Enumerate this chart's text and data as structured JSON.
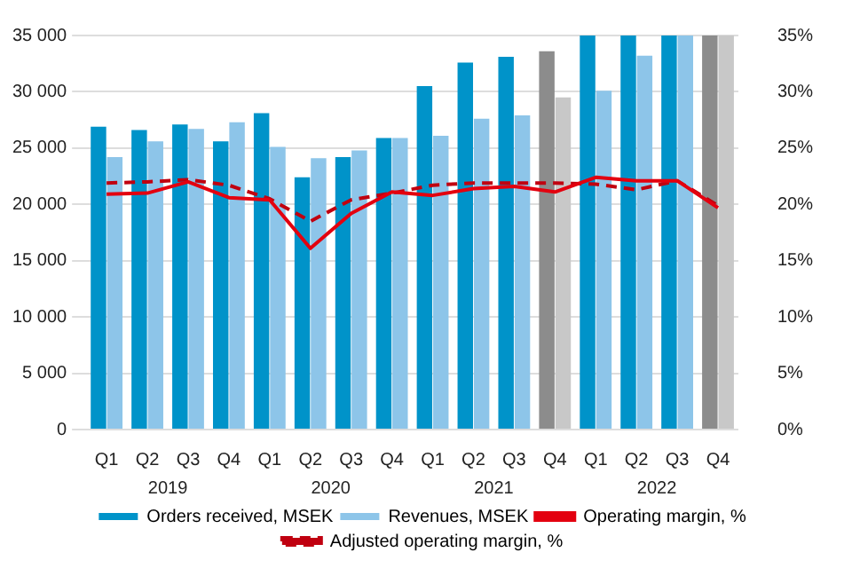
{
  "chart_data": {
    "type": "bar",
    "categories": [
      "Q1",
      "Q2",
      "Q3",
      "Q4",
      "Q1",
      "Q2",
      "Q3",
      "Q4",
      "Q1",
      "Q2",
      "Q3",
      "Q4",
      "Q1",
      "Q2",
      "Q3",
      "Q4"
    ],
    "annotations": [
      "2019",
      "2020",
      "2021",
      "2022"
    ],
    "series": [
      {
        "name": "Orders received, MSEK",
        "color": "#0093c9",
        "colors": [
          "#0093c9",
          "#0093c9",
          "#0093c9",
          "#0093c9",
          "#0093c9",
          "#0093c9",
          "#0093c9",
          "#0093c9",
          "#0093c9",
          "#0093c9",
          "#0093c9",
          "#8c8c8c",
          "#0093c9",
          "#0093c9",
          "#0093c9",
          "#8c8c8c"
        ],
        "values": [
          26900,
          26600,
          27100,
          25600,
          28100,
          22400,
          24200,
          25900,
          30500,
          32600,
          33100,
          33600,
          35000,
          35000,
          35000,
          35000
        ]
      },
      {
        "name": "Revenues, MSEK",
        "color": "#8dc5e9",
        "colors": [
          "#8dc5e9",
          "#8dc5e9",
          "#8dc5e9",
          "#8dc5e9",
          "#8dc5e9",
          "#8dc5e9",
          "#8dc5e9",
          "#8dc5e9",
          "#8dc5e9",
          "#8dc5e9",
          "#8dc5e9",
          "#c8c8c8",
          "#8dc5e9",
          "#8dc5e9",
          "#8dc5e9",
          "#c8c8c8"
        ],
        "values": [
          24200,
          25600,
          26700,
          27300,
          25100,
          24100,
          24800,
          25900,
          26100,
          27600,
          27900,
          29500,
          30100,
          33200,
          35000,
          35000
        ]
      },
      {
        "name": "Operating margin, %",
        "type": "line",
        "axis": "y2",
        "color": "#e3000f",
        "line_style": "solid",
        "values": [
          20.9,
          21.0,
          22.0,
          20.6,
          20.4,
          16.1,
          19.2,
          21.1,
          20.8,
          21.4,
          21.6,
          21.1,
          22.4,
          22.1,
          22.1,
          19.7
        ]
      },
      {
        "name": "Adjusted operating margin, %",
        "type": "line",
        "axis": "y2",
        "color": "#c00010",
        "line_style": "dashed",
        "values": [
          21.9,
          22.0,
          22.2,
          21.7,
          20.5,
          18.5,
          20.4,
          21.0,
          21.7,
          21.9,
          21.9,
          21.9,
          21.8,
          21.3,
          22.1,
          19.9
        ]
      }
    ],
    "ylim": [
      0,
      35000
    ],
    "yticks": [
      {
        "value": 0,
        "label": "0"
      },
      {
        "value": 5000,
        "label": "5 000"
      },
      {
        "value": 10000,
        "label": "10 000"
      },
      {
        "value": 15000,
        "label": "15 000"
      },
      {
        "value": 20000,
        "label": "20 000"
      },
      {
        "value": 25000,
        "label": "25 000"
      },
      {
        "value": 30000,
        "label": "30 000"
      },
      {
        "value": 35000,
        "label": "35 000"
      }
    ],
    "y2lim": [
      0,
      35
    ],
    "y2ticks": [
      {
        "value": 0,
        "label": "0%"
      },
      {
        "value": 5,
        "label": "5%"
      },
      {
        "value": 10,
        "label": "10%"
      },
      {
        "value": 15,
        "label": "15%"
      },
      {
        "value": 20,
        "label": "20%"
      },
      {
        "value": 25,
        "label": "25%"
      },
      {
        "value": 30,
        "label": "30%"
      },
      {
        "value": 35,
        "label": "35%"
      }
    ],
    "grid": "y",
    "legend": "bottom",
    "marker": "none"
  }
}
